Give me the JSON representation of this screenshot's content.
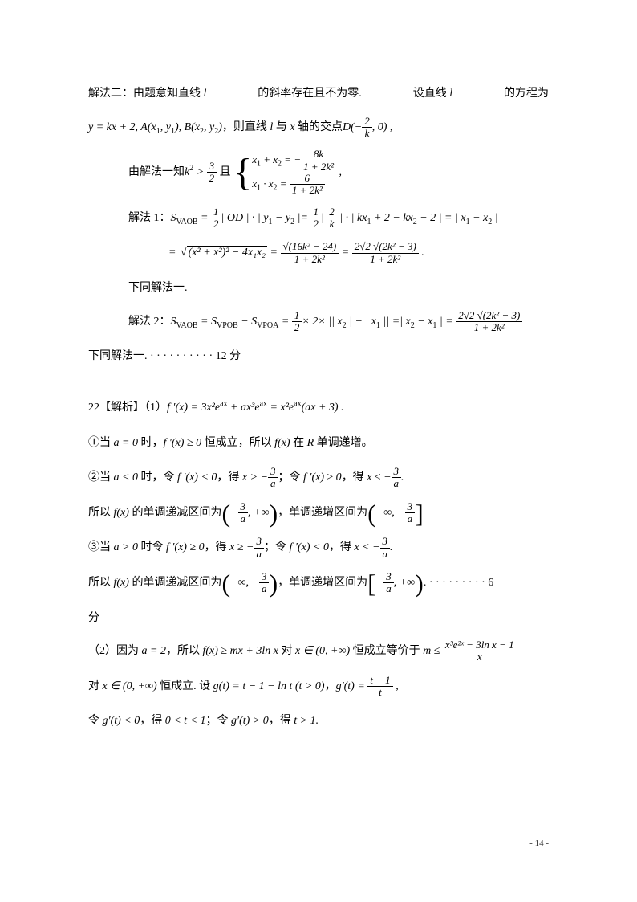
{
  "page_number": "- 14 -",
  "colors": {
    "text": "#000000",
    "background": "#ffffff",
    "page_num": "#333333"
  },
  "typography": {
    "body_font": "SimSun",
    "math_font": "Times New Roman",
    "body_size": 14,
    "line_height": 2.4
  },
  "line1": {
    "seg1": "解法二：由题意知直线",
    "var1": "l",
    "seg2": "的斜率存在且不为零.",
    "seg3": "设直线",
    "var2": "l",
    "seg4": "的方程为"
  },
  "line2": {
    "expr_prefix": "y = kx + 2, A(x",
    "s1": "1",
    "mid1": ", y",
    "s2": "1",
    "mid2": "), B(x",
    "s3": "2",
    "mid3": ", y",
    "s4": "2",
    "mid4": ")",
    "cn1": "，则直线",
    "var_l": " l ",
    "cn2": "与",
    "var_x": " x ",
    "cn3": "轴的交点",
    "D": "D(−",
    "frac_num": "2",
    "frac_den": "k",
    "tail": ", 0) ,"
  },
  "line3": {
    "cn1": "由解法一知",
    "k2": "k",
    "sup2": "2",
    "gt": " > ",
    "frac1_num": "3",
    "frac1_den": "2",
    "cn2": "且",
    "brace_r1_lhs": "x",
    "brace_r1_s1": "1",
    "brace_r1_plus": " + x",
    "brace_r1_s2": "2",
    "brace_r1_eq": " = −",
    "brace_r1_num": "8k",
    "brace_r1_den": "1 + 2k²",
    "brace_r2_lhs": "x",
    "brace_r2_s1": "1",
    "brace_r2_dot": " · x",
    "brace_r2_s2": "2",
    "brace_r2_eq": " = ",
    "brace_r2_num": "6",
    "brace_r2_den": "1 + 2k²",
    "comma": " ,"
  },
  "line4": {
    "label": "解法 1：",
    "S": "S",
    "Ssub": "VAOB",
    "eq": " = ",
    "half_num": "1",
    "half_den": "2",
    "od": "| OD | · | y",
    "s1": "1",
    "minus_y": " − y",
    "s2": "2",
    "bar_eq": " |= ",
    "half2_num": "1",
    "half2_den": "2",
    "bar": "| ",
    "frac2_num": "2",
    "frac2_den": "k",
    "after": " | · | kx",
    "sa": "1",
    "plus2": " + 2 − kx",
    "sb": "2",
    "minus2": " − 2 | = | x",
    "sc": "1",
    "minus_x": " − x",
    "sd": "2",
    "tail": " |"
  },
  "line5": {
    "eq": "= ",
    "sqrt1_inner": "(x² + x²)² − 4x₁x₂",
    "eq2": " = ",
    "f1_num": "√(16k² − 24)",
    "f1_den": "1 + 2k²",
    "eq3": " = ",
    "f2_num": "2√2 √(2k² − 3)",
    "f2_den": "1 + 2k²",
    "dot": " ."
  },
  "line6": "下同解法一.",
  "line7": {
    "label": "解法 2：",
    "S1": "S",
    "S1sub": "VAOB",
    "eq1": " = S",
    "S2sub": "VPOB",
    "minus": " − S",
    "S3sub": "VPOA",
    "eq2": " = ",
    "half_num": "1",
    "half_den": "2",
    "times": "× 2× || x",
    "s2": "2",
    "mid": " | − | x",
    "s1": "1",
    "mid2": " || =| x",
    "sa": "2",
    "minus_x": " − x",
    "sb": "1",
    "bar_eq": " | = ",
    "f_num": "2√2 √(2k² − 3)",
    "f_den": "1 + 2k²"
  },
  "line8": "下同解法一. · · · · · · · · · · 12 分",
  "q22": {
    "label": "22【解析】（1）",
    "fprime": "f ′(x) = 3x²e",
    "sup_ax1": "ax",
    "plus": " + ax³e",
    "sup_ax2": "ax",
    "eq": " = x²e",
    "sup_ax3": "ax",
    "tail": "(ax + 3) ."
  },
  "case1": {
    "circle": "①当",
    "a0": "a = 0",
    "cn1": "时，",
    "fp": "f ′(x) ≥ 0",
    "cn2": "恒成立，所以",
    "fx": "f(x)",
    "cn3": "在",
    "R": "R",
    "cn4": "单调递增。"
  },
  "case2a": {
    "circle": "②当",
    "alt0": "a < 0",
    "cn1": "时，令",
    "fp1": "f ′(x) < 0",
    "cn2": "，得",
    "x_gt": "x > −",
    "f_num": "3",
    "f_den": "a",
    "cn3": "；令",
    "fp2": "f ′(x) ≥ 0",
    "cn4": "，得",
    "x_le": "x ≤ −",
    "f2_num": "3",
    "f2_den": "a",
    "dot": "."
  },
  "case2b": {
    "cn1": "所以",
    "fx": "f(x)",
    "cn2": "的单调递减区间为",
    "int1_a": "−",
    "int1_num": "3",
    "int1_den": "a",
    "int1_b": ", +∞",
    "cn3": "，单调递增区间为",
    "int2_a": "−∞, −",
    "int2_num": "3",
    "int2_den": "a"
  },
  "case3a": {
    "circle": "③当",
    "agt0": "a > 0",
    "cn1": "时令",
    "fp1": "f ′(x) ≥ 0",
    "cn2": "，得",
    "x_ge": "x ≥ −",
    "f_num": "3",
    "f_den": "a",
    "cn3": "；令",
    "fp2": "f ′(x) < 0",
    "cn4": "，得",
    "x_lt": "x < −",
    "f2_num": "3",
    "f2_den": "a",
    "dot": "."
  },
  "case3b": {
    "cn1": "所以",
    "fx": "f(x)",
    "cn2": "的单调递减区间为",
    "int1_a": "−∞, −",
    "int1_num": "3",
    "int1_den": "a",
    "cn3": "，单调递增区间为",
    "int2_a": "−",
    "int2_num": "3",
    "int2_den": "a",
    "int2_b": ", +∞",
    "dots": ". · · · · · · · · · 6"
  },
  "fen": "分",
  "part2a": {
    "label": "（2）因为",
    "a2": "a = 2",
    "cn1": "，所以",
    "ineq": "f(x) ≥ mx + 3ln x",
    "cn2": "对",
    "xin": "x ∈ (0, +∞)",
    "cn3": "恒成立等价于",
    "m_le": "m ≤ ",
    "f_num": "x³e²ˣ − 3ln x − 1",
    "f_den": "x"
  },
  "part2b": {
    "cn1": "对",
    "xin": "x ∈ (0, +∞)",
    "cn2": "恒成立. 设",
    "gt": "g(t) = t − 1 − ln t (t > 0)",
    "cn3": "，",
    "gp": "g′(t) = ",
    "f_num": "t − 1",
    "f_den": "t",
    "comma": " ,"
  },
  "part2c": {
    "cn1": "令",
    "gp1": "g′(t) < 0",
    "cn2": "，得",
    "t1": "0 < t < 1",
    "cn3": "；令",
    "gp2": "g′(t) > 0",
    "cn4": "，得",
    "t2": "t > 1",
    "dot": "."
  }
}
